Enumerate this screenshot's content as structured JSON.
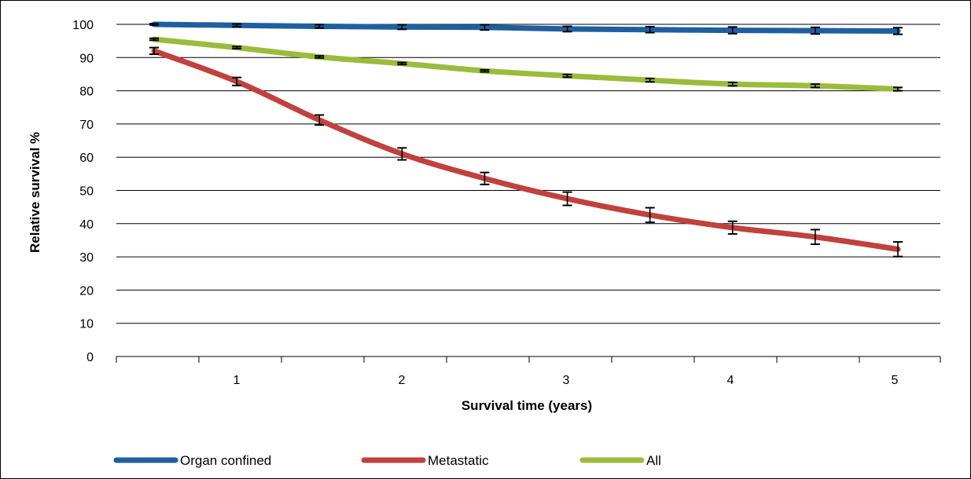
{
  "chart_data": {
    "type": "line",
    "xlabel": "Survival time (years)",
    "ylabel": "Relative survival %",
    "x_ticks": [
      "1",
      "2",
      "3",
      "4",
      "5"
    ],
    "y_ticks": [
      "0",
      "10",
      "20",
      "30",
      "40",
      "50",
      "60",
      "70",
      "80",
      "90",
      "100"
    ],
    "xlim": [
      0.5,
      5
    ],
    "ylim": [
      0,
      100
    ],
    "grid": "horizontal",
    "legend_position": "bottom",
    "x": [
      0.5,
      1.0,
      1.5,
      2.0,
      2.5,
      3.0,
      3.5,
      4.0,
      4.5,
      5.0
    ],
    "series": [
      {
        "name": "Organ confined",
        "color": "#1f5fa0",
        "values": [
          100,
          99.7,
          99.4,
          99.2,
          99.1,
          98.6,
          98.4,
          98.2,
          98.1,
          98.0
        ],
        "error": [
          0.2,
          0.4,
          0.5,
          0.7,
          0.8,
          0.8,
          0.9,
          1.0,
          1.0,
          1.0
        ]
      },
      {
        "name": "Metastatic",
        "color": "#c0413d",
        "values": [
          92.0,
          82.8,
          71.2,
          61.0,
          53.6,
          47.5,
          42.6,
          38.8,
          36.0,
          32.3
        ],
        "error": [
          1.0,
          1.2,
          1.5,
          1.8,
          1.8,
          2.0,
          2.2,
          1.9,
          2.2,
          2.2
        ]
      },
      {
        "name": "All",
        "color": "#9bbb3c",
        "values": [
          95.5,
          93.0,
          90.2,
          88.2,
          86.0,
          84.5,
          83.2,
          82.0,
          81.5,
          80.5
        ],
        "error": [
          0.3,
          0.3,
          0.3,
          0.3,
          0.3,
          0.4,
          0.5,
          0.5,
          0.5,
          0.5
        ]
      }
    ]
  }
}
